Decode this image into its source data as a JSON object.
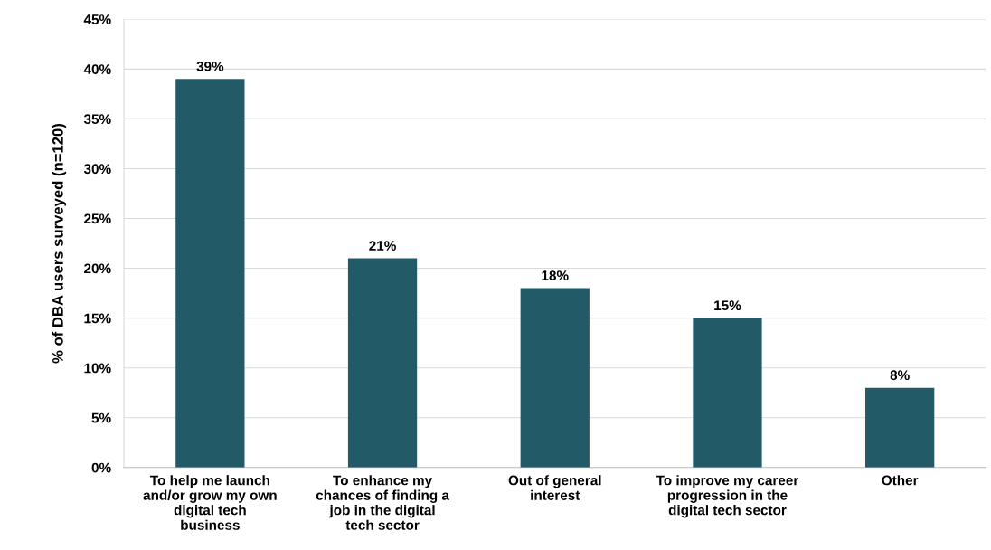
{
  "chart_data": {
    "type": "bar",
    "ylabel": "% of DBA users surveyed (n=120)",
    "categories": [
      "To help me launch and/or grow my own digital tech business",
      "To enhance my chances of finding a job in the digital tech sector",
      "Out of general interest",
      "To improve my career progression in the digital tech sector",
      "Other"
    ],
    "values": [
      39,
      21,
      18,
      15,
      8
    ],
    "value_labels": [
      "39%",
      "21%",
      "18%",
      "15%",
      "8%"
    ],
    "color": "#235a68",
    "ylim": [
      0,
      45
    ],
    "yticks": [
      {
        "value": 0,
        "label": "0%"
      },
      {
        "value": 5,
        "label": "5%"
      },
      {
        "value": 10,
        "label": "10%"
      },
      {
        "value": 15,
        "label": "15%"
      },
      {
        "value": 20,
        "label": "20%"
      },
      {
        "value": 25,
        "label": "25%"
      },
      {
        "value": 30,
        "label": "30%"
      },
      {
        "value": 35,
        "label": "35%"
      },
      {
        "value": 40,
        "label": "40%"
      },
      {
        "value": 45,
        "label": "45%"
      }
    ],
    "grid": "y"
  }
}
